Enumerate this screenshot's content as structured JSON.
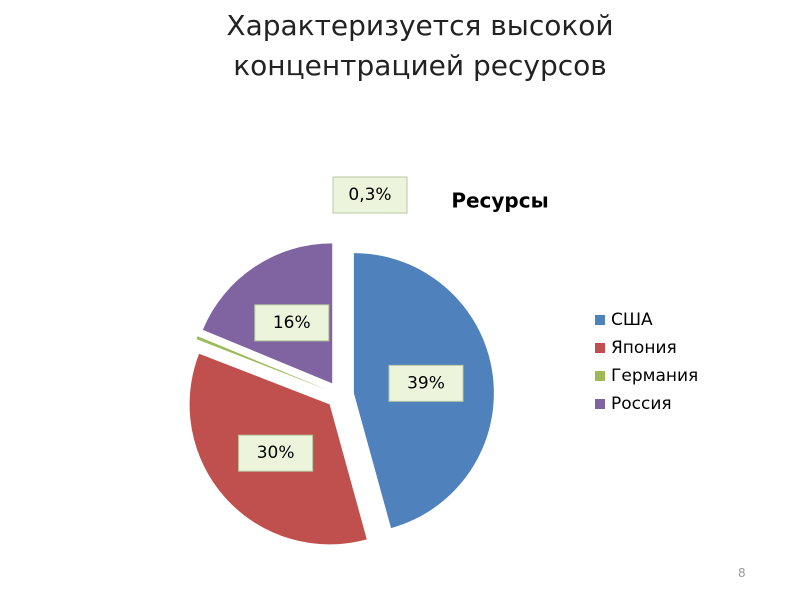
{
  "slide": {
    "title": "Характеризуется высокой концентрацией ресурсов",
    "number": "8"
  },
  "chart_data": {
    "type": "pie",
    "title": "Ресурсы",
    "categories": [
      "США",
      "Япония",
      "Германия",
      "Россия"
    ],
    "values": [
      39,
      30,
      0.3,
      16
    ],
    "value_labels": [
      "39%",
      "30%",
      "0,3%",
      "16%"
    ],
    "colors": [
      "#4f81bd",
      "#c0504d",
      "#9bbb59",
      "#8064a2"
    ],
    "legend": "right"
  }
}
